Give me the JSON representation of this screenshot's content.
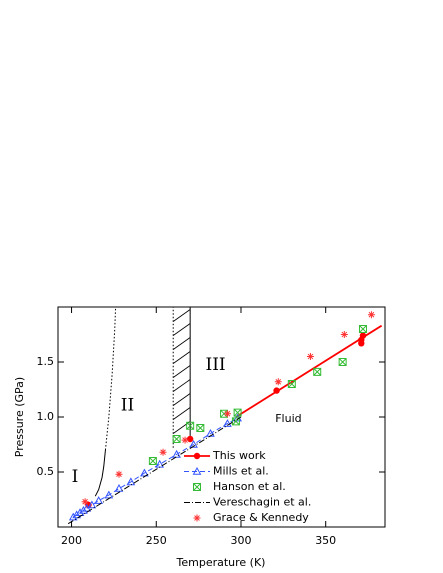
{
  "chart_data": {
    "type": "scatter",
    "x_label": "Temperature (K)",
    "y_label": "Pressure (GPa)",
    "xlim": [
      192,
      385
    ],
    "ylim": [
      0,
      2.0
    ],
    "xticks": [
      200,
      250,
      300,
      350
    ],
    "yticks": [
      0.5,
      {
        "value": 1.0,
        "label": "1.0"
      },
      1.5
    ],
    "series": [
      {
        "name": "This work",
        "color": "#ff0000",
        "marker": "circle",
        "line": "solid",
        "x": [
          210,
          270,
          321,
          371,
          371,
          372
        ],
        "y": [
          0.2,
          0.8,
          1.24,
          1.67,
          1.7,
          1.74
        ],
        "fit_x": [
          297,
          383
        ],
        "fit_y": [
          1.0,
          1.83
        ]
      },
      {
        "name": "Mills et al.",
        "color": "#3355ff",
        "marker": "triangle",
        "line": "dashed",
        "x": [
          201,
          203,
          205,
          207,
          209,
          212,
          216,
          222,
          228,
          235,
          243,
          252,
          262,
          272,
          282,
          292,
          298
        ],
        "y": [
          0.09,
          0.11,
          0.13,
          0.15,
          0.17,
          0.2,
          0.24,
          0.29,
          0.35,
          0.41,
          0.49,
          0.57,
          0.66,
          0.75,
          0.85,
          0.94,
          0.99
        ]
      },
      {
        "name": "Hanson et al.",
        "color": "#33bb33",
        "marker": "boxx",
        "line": "none",
        "x": [
          248,
          262,
          270,
          276,
          290,
          297,
          298,
          330,
          345,
          360,
          372
        ],
        "y": [
          0.6,
          0.8,
          0.92,
          0.9,
          1.03,
          0.96,
          1.04,
          1.3,
          1.41,
          1.5,
          1.8
        ]
      },
      {
        "name": "Vereschagin et al.",
        "color": "#000000",
        "marker": "none",
        "line": "dashdot",
        "x": [
          198,
          300
        ],
        "y": [
          0.03,
          1.0
        ]
      },
      {
        "name": "Grace & Kennedy",
        "color": "#ff3333",
        "marker": "star",
        "line": "none",
        "x": [
          208,
          228,
          254,
          267,
          292,
          322,
          341,
          361,
          377
        ],
        "y": [
          0.23,
          0.48,
          0.68,
          0.79,
          1.03,
          1.32,
          1.55,
          1.75,
          1.93
        ]
      }
    ],
    "boundaries": [
      {
        "style": "solid",
        "x": [
          214,
          216,
          218,
          219,
          220
        ],
        "y": [
          0.28,
          0.34,
          0.45,
          0.55,
          0.7
        ]
      },
      {
        "style": "dotted",
        "x": [
          220,
          222,
          224,
          225.5,
          226
        ],
        "y": [
          0.7,
          1.0,
          1.4,
          1.8,
          2.0
        ]
      },
      {
        "style": "dotted",
        "x": [
          260,
          260
        ],
        "y": [
          0.72,
          2.0
        ]
      },
      {
        "style": "solid",
        "x": [
          270,
          270
        ],
        "y": [
          0.8,
          2.0
        ]
      }
    ],
    "annotations": [
      {
        "text": "I",
        "x": 202,
        "y": 0.45
      },
      {
        "text": "II",
        "x": 233,
        "y": 1.1
      },
      {
        "text": "III",
        "x": 285,
        "y": 1.47
      },
      {
        "text": "Fluid",
        "x": 328,
        "y": 0.98
      }
    ]
  }
}
